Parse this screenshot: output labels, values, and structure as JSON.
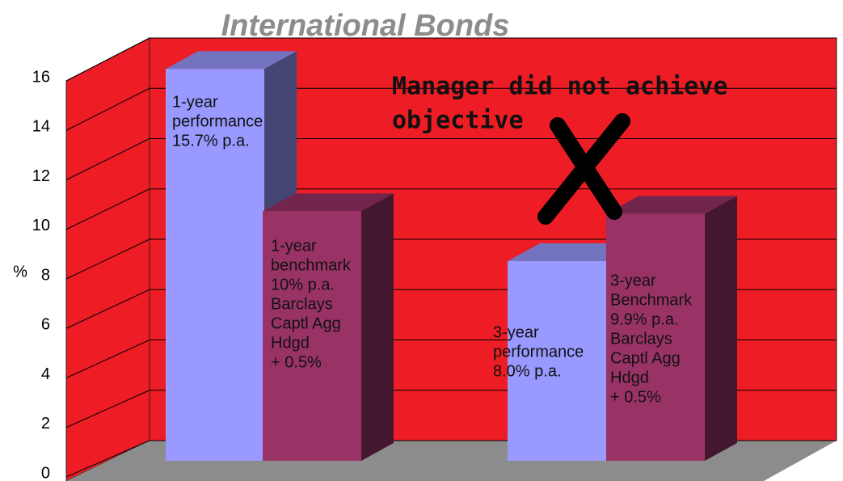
{
  "chart_data": {
    "type": "bar3d",
    "title": "International Bonds",
    "y_label": "%",
    "annotation": [
      "Manager did not achieve",
      "objective"
    ],
    "bar_labels": [
      [
        "1-year",
        "performance",
        "15.7% p.a."
      ],
      [
        "1-year",
        "benchmark",
        "10% p.a.",
        "Barclays",
        "Captl Agg",
        "Hdgd",
        "+ 0.5%"
      ],
      [
        "3-year",
        "performance",
        "8.0% p.a."
      ],
      [
        "3-year",
        "Benchmark",
        "9.9% p.a.",
        "Barclays",
        "Captl Agg",
        "Hdgd",
        "+ 0.5%"
      ]
    ],
    "values": [
      15.7,
      10,
      8.0,
      9.9
    ],
    "colors": [
      "#9999ff",
      "#993366",
      "#9999ff",
      "#993366"
    ],
    "ylim": [
      0,
      16
    ],
    "yticks": [
      0,
      2,
      4,
      6,
      8,
      10,
      12,
      14,
      16
    ],
    "grid": true
  }
}
